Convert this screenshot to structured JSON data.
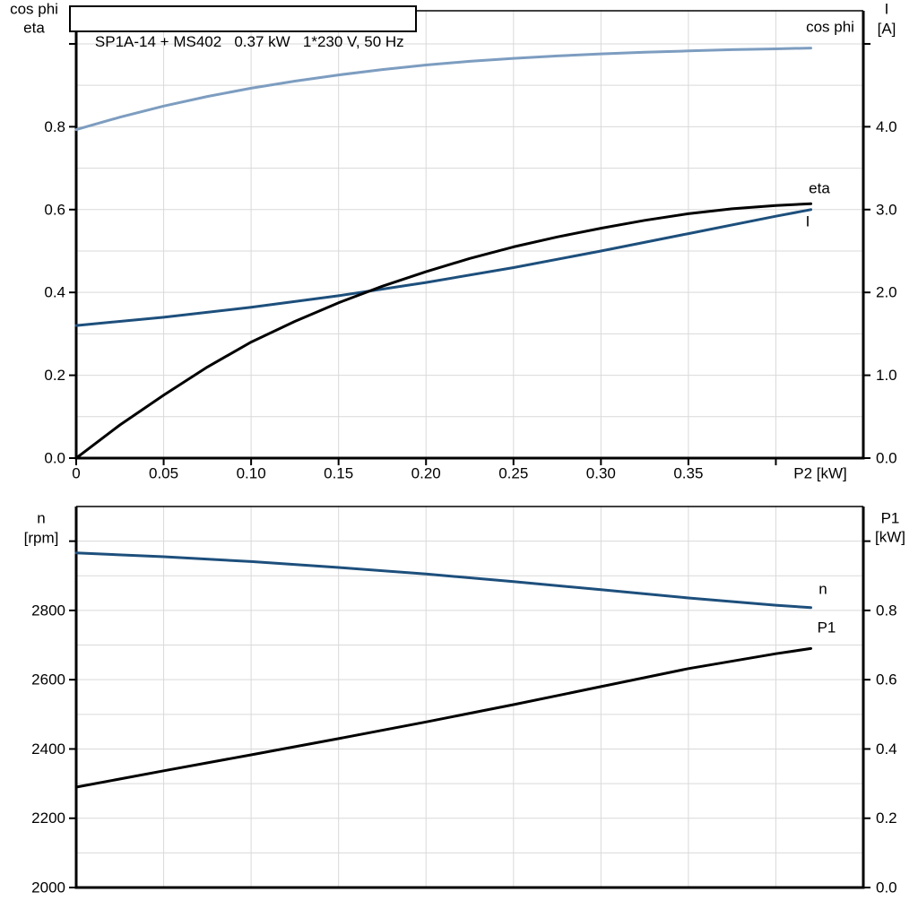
{
  "colors": {
    "background": "#ffffff",
    "black": "#000000",
    "dark_blue": "#1d4f7c",
    "light_blue": "#7d9dc0",
    "grid": "#d9d9d9"
  },
  "chart_data": [
    {
      "type": "line",
      "title": "SP1A-14 + MS402   0.37 kW   1*230 V, 50 Hz",
      "x_axis": {
        "label": "P2 [kW]",
        "min": 0,
        "max": 0.45,
        "grid_step": 0.05,
        "ticks": [
          {
            "v": 0,
            "t": "0"
          },
          {
            "v": 0.05,
            "t": "0.05"
          },
          {
            "v": 0.1,
            "t": "0.10"
          },
          {
            "v": 0.15,
            "t": "0.15"
          },
          {
            "v": 0.2,
            "t": "0.20"
          },
          {
            "v": 0.25,
            "t": "0.25"
          },
          {
            "v": 0.3,
            "t": "0.30"
          },
          {
            "v": 0.35,
            "t": "0.35"
          }
        ],
        "unlabeled_ticks": [
          0.4
        ]
      },
      "left_axis": {
        "title_lines": [
          "cos phi",
          "eta"
        ],
        "min": 0,
        "max": 1.08,
        "grid_step": 0.1,
        "ticks": [
          {
            "v": 0,
            "t": "0.0"
          },
          {
            "v": 0.2,
            "t": "0.2"
          },
          {
            "v": 0.4,
            "t": "0.4"
          },
          {
            "v": 0.6,
            "t": "0.6"
          },
          {
            "v": 0.8,
            "t": "0.8"
          }
        ],
        "unlabeled_ticks": [
          1.0
        ]
      },
      "right_axis": {
        "title_lines": [
          "I",
          "[A]"
        ],
        "min": 0,
        "max": 5.4,
        "ticks": [
          {
            "v": 0,
            "t": "0.0"
          },
          {
            "v": 1,
            "t": "1.0"
          },
          {
            "v": 2,
            "t": "2.0"
          },
          {
            "v": 3,
            "t": "3.0"
          },
          {
            "v": 4,
            "t": "4.0"
          }
        ],
        "unlabeled_ticks": [
          5.0
        ]
      },
      "series": [
        {
          "name": "cos phi",
          "label": "cos phi",
          "axis": "left",
          "color": "#7d9dc0",
          "x": [
            0,
            0.025,
            0.05,
            0.075,
            0.1,
            0.125,
            0.15,
            0.175,
            0.2,
            0.225,
            0.25,
            0.275,
            0.3,
            0.325,
            0.35,
            0.375,
            0.4,
            0.42
          ],
          "y": [
            0.793,
            0.823,
            0.85,
            0.873,
            0.893,
            0.91,
            0.925,
            0.938,
            0.949,
            0.958,
            0.965,
            0.971,
            0.976,
            0.98,
            0.983,
            0.986,
            0.988,
            0.99
          ]
        },
        {
          "name": "I",
          "label": "I",
          "axis": "right",
          "color": "#1d4f7c",
          "x": [
            0,
            0.05,
            0.1,
            0.15,
            0.2,
            0.25,
            0.3,
            0.35,
            0.4,
            0.42
          ],
          "y": [
            1.6,
            1.7,
            1.82,
            1.96,
            2.12,
            2.3,
            2.5,
            2.71,
            2.92,
            3.0
          ]
        },
        {
          "name": "eta",
          "label": "eta",
          "axis": "left",
          "color": "#000000",
          "x": [
            0,
            0.025,
            0.05,
            0.075,
            0.1,
            0.125,
            0.15,
            0.175,
            0.2,
            0.225,
            0.25,
            0.275,
            0.3,
            0.325,
            0.35,
            0.375,
            0.4,
            0.42
          ],
          "y": [
            0,
            0.08,
            0.152,
            0.22,
            0.28,
            0.33,
            0.375,
            0.415,
            0.45,
            0.482,
            0.51,
            0.534,
            0.555,
            0.574,
            0.59,
            0.602,
            0.61,
            0.614
          ]
        }
      ]
    },
    {
      "type": "line",
      "title": "",
      "x_axis": {
        "label": "",
        "min": 0,
        "max": 0.45,
        "grid_step": 0.05,
        "ticks": [],
        "unlabeled_ticks": []
      },
      "left_axis": {
        "title_lines": [
          "n",
          "[rpm]"
        ],
        "min": 2000,
        "max": 3100,
        "grid_step": 100,
        "ticks": [
          {
            "v": 2000,
            "t": "2000"
          },
          {
            "v": 2200,
            "t": "2200"
          },
          {
            "v": 2400,
            "t": "2400"
          },
          {
            "v": 2600,
            "t": "2600"
          },
          {
            "v": 2800,
            "t": "2800"
          }
        ],
        "unlabeled_ticks": [
          3000
        ]
      },
      "right_axis": {
        "title_lines": [
          "P1",
          "[kW]"
        ],
        "min": 0,
        "max": 1.1,
        "ticks": [
          {
            "v": 0,
            "t": "0.0"
          },
          {
            "v": 0.2,
            "t": "0.2"
          },
          {
            "v": 0.4,
            "t": "0.4"
          },
          {
            "v": 0.6,
            "t": "0.6"
          },
          {
            "v": 0.8,
            "t": "0.8"
          }
        ],
        "unlabeled_ticks": [
          1.0
        ]
      },
      "series": [
        {
          "name": "n",
          "label": "n",
          "axis": "left",
          "color": "#1d4f7c",
          "x": [
            0,
            0.05,
            0.1,
            0.15,
            0.2,
            0.25,
            0.3,
            0.35,
            0.4,
            0.42
          ],
          "y": [
            2966,
            2955,
            2941,
            2924,
            2905,
            2883,
            2860,
            2836,
            2815,
            2808
          ]
        },
        {
          "name": "P1",
          "label": "P1",
          "axis": "right",
          "color": "#000000",
          "x": [
            0,
            0.05,
            0.1,
            0.15,
            0.2,
            0.25,
            0.3,
            0.35,
            0.4,
            0.42
          ],
          "y": [
            0.29,
            0.337,
            0.383,
            0.43,
            0.478,
            0.528,
            0.58,
            0.632,
            0.675,
            0.69
          ]
        }
      ]
    }
  ]
}
